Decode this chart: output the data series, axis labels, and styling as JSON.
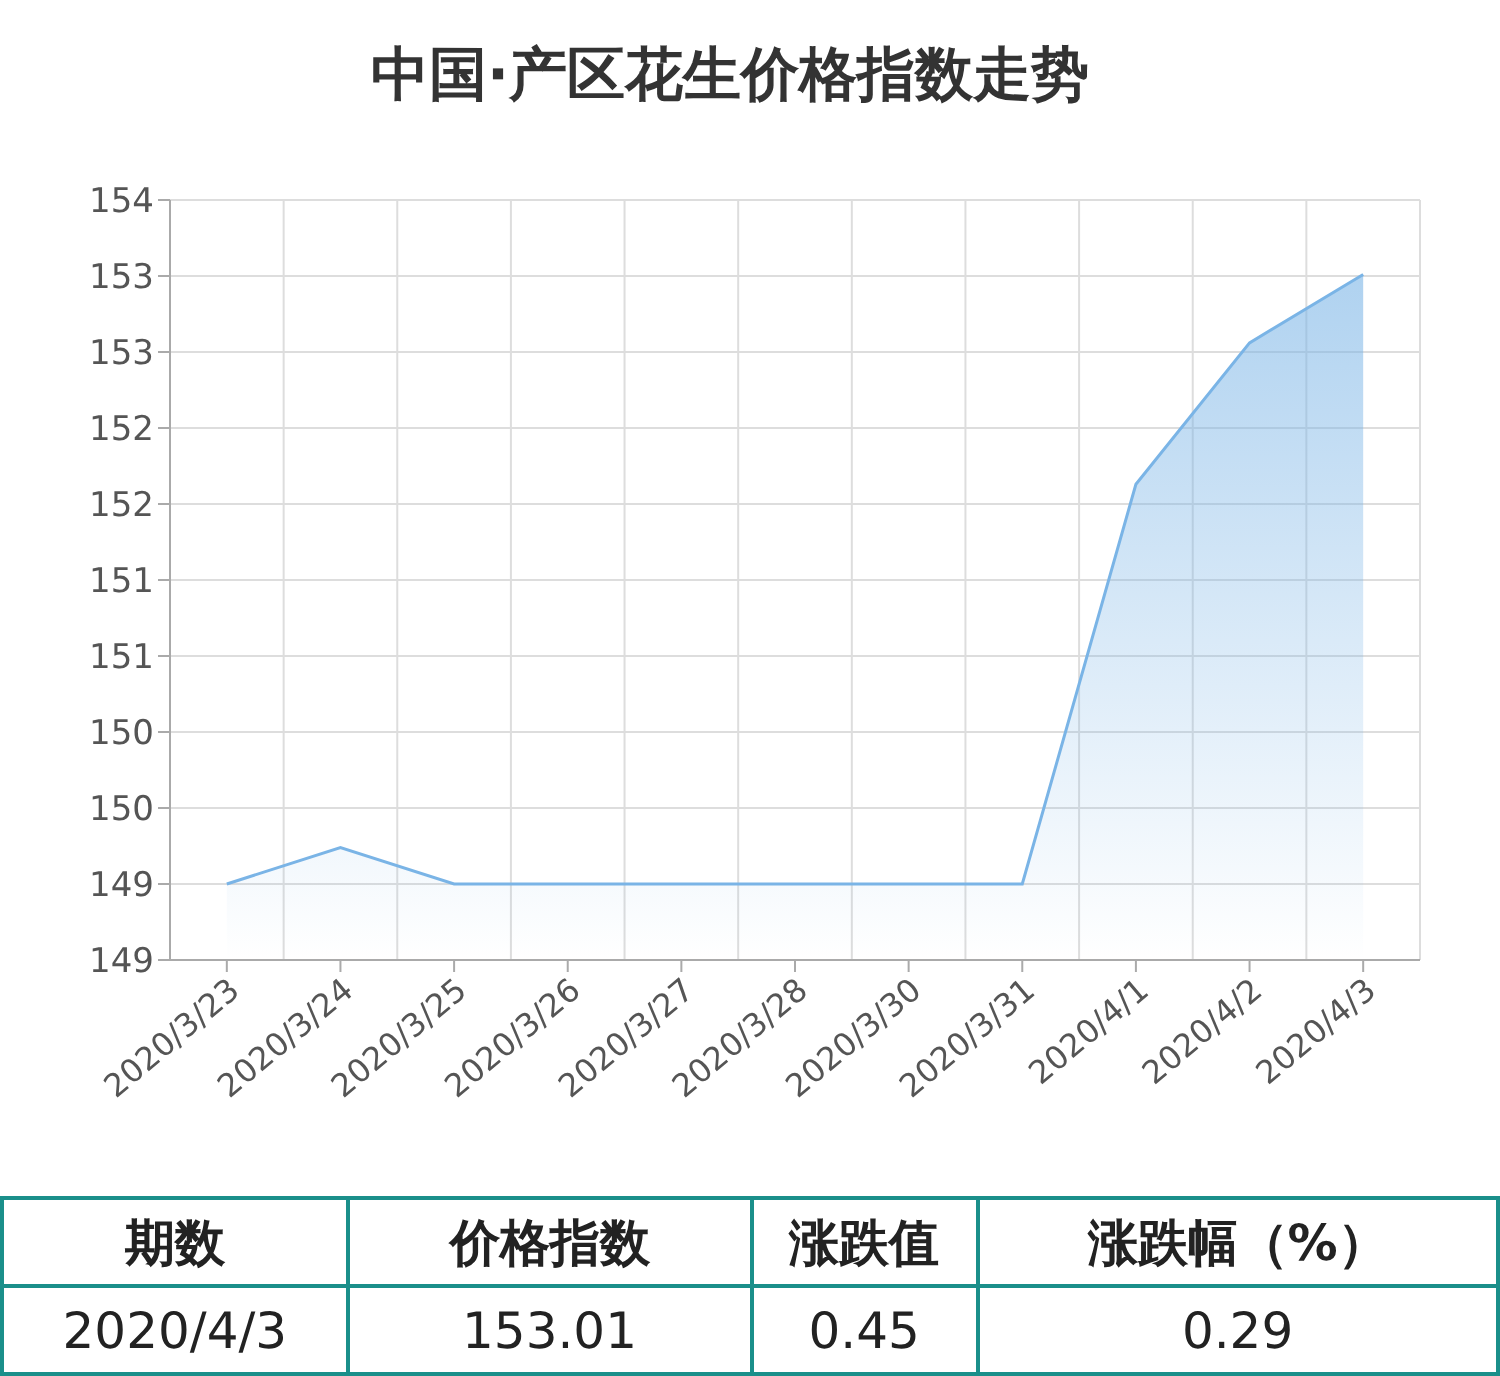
{
  "chart_data": {
    "type": "area",
    "title": "中国·产区花生价格指数走势",
    "categories": [
      "2020/3/23",
      "2020/3/24",
      "2020/3/25",
      "2020/3/26",
      "2020/3/27",
      "2020/3/28",
      "2020/3/30",
      "2020/3/31",
      "2020/4/1",
      "2020/4/2",
      "2020/4/3"
    ],
    "series": [
      {
        "color": "#7ab4e6",
        "values": [
          149.0,
          149.24,
          149.0,
          149.0,
          149.0,
          149.0,
          149.0,
          149.0,
          151.63,
          152.56,
          153.01
        ]
      }
    ],
    "ylim": [
      148.5,
      153.5
    ],
    "yticks": [
      {
        "value": 148.5,
        "label": "149"
      },
      149,
      {
        "value": 149.5,
        "label": "150"
      },
      150,
      {
        "value": 150.5,
        "label": "151"
      },
      151,
      {
        "value": 151.5,
        "label": "152"
      },
      152,
      {
        "value": 152.5,
        "label": "153"
      },
      153,
      {
        "value": 153.5,
        "label": "154"
      }
    ],
    "grid": true,
    "legend": false,
    "marker": "none",
    "annotations": [
      "期数",
      "价格指数",
      "涨跌值",
      "涨跌幅（%）",
      "2020/4/3",
      "153.01",
      "0.45",
      "0.29"
    ]
  }
}
